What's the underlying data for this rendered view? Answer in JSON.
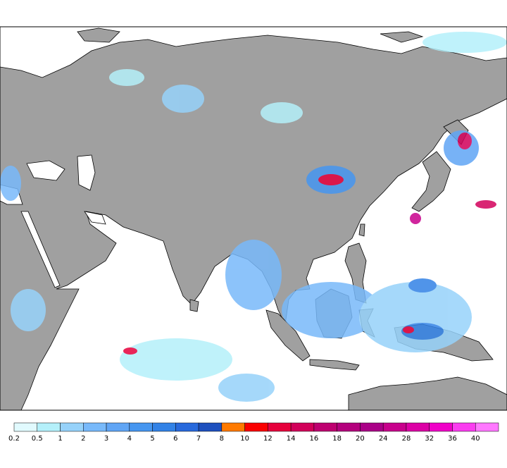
{
  "colorbar": {
    "levels": [
      0.2,
      0.5,
      1,
      2,
      3,
      4,
      5,
      6,
      7,
      8,
      10,
      12,
      14,
      16,
      18,
      20,
      24,
      28,
      32,
      36,
      40
    ],
    "colors": [
      "#e1fafe",
      "#b4f0fa",
      "#96d2fa",
      "#78b9fa",
      "#60a5f5",
      "#4696f0",
      "#3282e6",
      "#2869dc",
      "#1e50be",
      "#ff7a00",
      "#fa0000",
      "#e6003c",
      "#d2005a",
      "#be0070",
      "#b4007d",
      "#aa0087",
      "#c8008c",
      "#dc00a5",
      "#f000c8",
      "#fa3cf0",
      "#ff78ff"
    ]
  }
}
